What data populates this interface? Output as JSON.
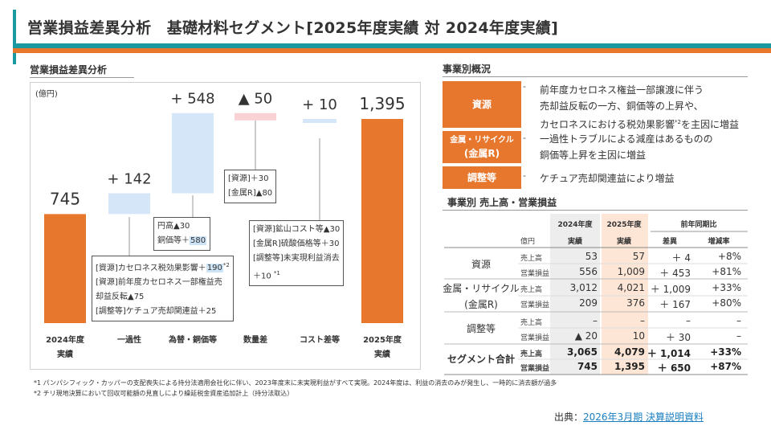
{
  "title": "営業損益差異分析　基礎材料セグメント[2025年度実績 対 2024年度実績]",
  "chart_section": {
    "label": "営業損益差異分析",
    "unit": "(億円)"
  },
  "chart_data": {
    "type": "bar",
    "subtype": "waterfall",
    "unit": "億円",
    "categories": [
      "2024年度\n実績",
      "一過性",
      "為替・銅価等",
      "数量差",
      "コスト差等",
      "2025年度\n実績"
    ],
    "values": [
      745,
      142,
      548,
      -50,
      10,
      1395
    ],
    "bar_kind": [
      "total",
      "delta",
      "delta",
      "delta",
      "delta",
      "total"
    ],
    "labels": [
      "745",
      "+ 142",
      "+ 548",
      "▲ 50",
      "+ 10",
      "1,395"
    ],
    "colors": {
      "total": "#e8772e",
      "increase": "#d4e6f7",
      "decrease": "#f8d2d4",
      "connector": "#aaaaaa"
    }
  },
  "annotations": {
    "onetime": {
      "line1_a": "[資源]カセロネス税効果影響＋",
      "line1_hl": "190",
      "line1_sup": "*2",
      "line2": "[資源]前年度カセロネス一部権益売",
      "line3": "却益反転▲75",
      "line4": "[調整等]ケチュア売却関連益＋25"
    },
    "fx": {
      "line1": "円高▲30",
      "line2_a": "銅価等＋",
      "line2_hl": "580"
    },
    "volume": {
      "line1": "[資源]＋30",
      "line2": "[金属R]▲80"
    },
    "cost": {
      "line1": "[資源]鉱山コスト等▲30",
      "line2": "[金属R]硫酸価格等＋30",
      "line3": "[調整等]未実現利益消去",
      "line4_a": "＋10 ",
      "line4_sup": "*1"
    }
  },
  "biz_section": {
    "label": "事業別概況"
  },
  "biz": [
    {
      "name": "資源",
      "lines": [
        "前年度カセロネス権益一部譲渡に伴う",
        "売却益反転の一方、銅価等の上昇や、",
        "カセロネスにおける税効果影響",
        "を主因に増益"
      ],
      "sup": "*2"
    },
    {
      "name_l1": "金属・リサイクル",
      "name_l2": "(金属R)",
      "lines": [
        "一過性トラブルによる減産はあるものの",
        "銅価等上昇を主因に増益"
      ]
    },
    {
      "name": "調整等",
      "lines": [
        "ケチュア売却関連益により増益"
      ]
    }
  ],
  "dash": "-",
  "table_section": {
    "label": "事業別 売上高・営業損益"
  },
  "table": {
    "h_2024": "2024年度",
    "h_2025": "2025年度",
    "h_yoy": "前年同期比",
    "h_unit": "億円",
    "h_act1": "実績",
    "h_act2": "実績",
    "h_diff": "差異",
    "h_rate": "増減率",
    "m_sales": "売上高",
    "m_op": "営業損益",
    "groups": [
      {
        "name_l1": "資源",
        "name_l2": "",
        "sales": [
          "53",
          "57",
          "＋ 4",
          "+8%"
        ],
        "op": [
          "556",
          "1,009",
          "＋ 453",
          "+81%"
        ]
      },
      {
        "name_l1": "金属・リサイクル",
        "name_l2": "(金属R)",
        "sales": [
          "3,012",
          "4,021",
          "＋ 1,009",
          "+33%"
        ],
        "op": [
          "209",
          "376",
          "＋ 167",
          "+80%"
        ]
      },
      {
        "name_l1": "調整等",
        "name_l2": "",
        "sales": [
          "–",
          "–",
          "–",
          "–"
        ],
        "op": [
          "▲ 20",
          "10",
          "＋ 30",
          "–"
        ]
      },
      {
        "name_l1": "セグメント合計",
        "name_l2": "",
        "sales": [
          "3,065",
          "4,079",
          "＋ 1,014",
          "+33%"
        ],
        "op": [
          "745",
          "1,395",
          "＋ 650",
          "+87%"
        ]
      }
    ]
  },
  "footnotes": [
    "*1 パンパシフィック・カッパーの支配喪失による持分法適用会社化に伴い、2023年度末に未実現利益がすべて実現。2024年度は、利益の消去のみが発生し、一時的に消去額が過多",
    "*2 チリ現地決算において回収可能額の見直しにより繰延税金資産追加計上（持分法取込）"
  ],
  "source": {
    "prefix": "出典：",
    "link": "2026年3月期 決算説明資料"
  }
}
